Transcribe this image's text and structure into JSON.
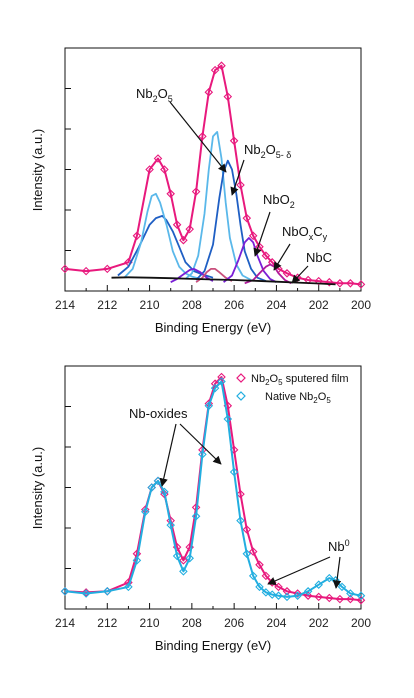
{
  "chart_data": [
    {
      "type": "line",
      "xlabel": "Binding Energy (eV)",
      "ylabel": "Intensity (a.u.)",
      "xlim": [
        214,
        200
      ],
      "ylim": [
        0,
        1.1
      ],
      "x_reversed": true,
      "xticks": [
        "214",
        "212",
        "210",
        "208",
        "206",
        "204",
        "202",
        "200"
      ],
      "annotations": {
        "nb2o5": {
          "main": "Nb",
          "sub": "2",
          "main2": "O",
          "sub2": "5"
        },
        "nb2o5d": {
          "main": "Nb",
          "sub": "2",
          "main2": "O",
          "sub2": "5- δ"
        },
        "nbo2": {
          "main": "NbO",
          "sub": "2"
        },
        "nboxcy": {
          "main": "NbO",
          "sub": "x",
          "main2": "C",
          "sub2": "y"
        },
        "nbc": "NbC"
      },
      "series": [
        {
          "color": "#e8197d",
          "x": [
            214,
            213,
            212,
            211,
            210.6,
            210,
            209.6,
            209.3,
            209,
            208.7,
            208.4,
            208.1,
            207.8,
            207.5,
            207.2,
            206.9,
            206.6,
            206.3,
            206,
            205.7,
            205.4,
            205.1,
            204.8,
            204.5,
            204.2,
            203.9,
            203.5,
            203,
            202.5,
            202,
            201.5,
            201,
            200.5,
            200
          ],
          "y": [
            0.1,
            0.09,
            0.1,
            0.13,
            0.25,
            0.55,
            0.6,
            0.55,
            0.44,
            0.3,
            0.23,
            0.28,
            0.45,
            0.7,
            0.9,
            1.0,
            1.02,
            0.88,
            0.68,
            0.48,
            0.33,
            0.25,
            0.2,
            0.16,
            0.13,
            0.1,
            0.08,
            0.06,
            0.05,
            0.045,
            0.04,
            0.035,
            0.035,
            0.03
          ]
        },
        {
          "color": "#1f5fc4",
          "x": [
            211.5,
            211,
            210.5,
            210,
            209.7,
            209.4,
            209.2,
            208.9,
            208.6,
            208.3,
            207.9,
            207.5,
            207
          ],
          "y": [
            0.07,
            0.11,
            0.2,
            0.3,
            0.33,
            0.34,
            0.32,
            0.27,
            0.2,
            0.13,
            0.09,
            0.075,
            0.06
          ]
        },
        {
          "color": "#5ab8ea",
          "x": [
            211.2,
            210.8,
            210.4,
            210.1,
            209.9,
            209.7,
            209.5,
            209.2,
            208.9,
            208.6,
            208.3,
            208,
            207.6
          ],
          "y": [
            0.06,
            0.1,
            0.22,
            0.36,
            0.43,
            0.44,
            0.4,
            0.3,
            0.18,
            0.11,
            0.08,
            0.065,
            0.055
          ]
        },
        {
          "color": "#5ab8ea",
          "x": [
            208.3,
            208,
            207.7,
            207.4,
            207.2,
            207,
            206.8,
            206.6,
            206.4,
            206.2,
            205.9,
            205.6,
            205.2
          ],
          "y": [
            0.055,
            0.08,
            0.16,
            0.35,
            0.55,
            0.7,
            0.72,
            0.6,
            0.4,
            0.24,
            0.12,
            0.07,
            0.05
          ]
        },
        {
          "color": "#1f5fc4",
          "x": [
            207.8,
            207.4,
            207,
            206.7,
            206.5,
            206.3,
            206.1,
            205.9,
            205.7,
            205.5,
            205.2,
            204.9,
            204.5
          ],
          "y": [
            0.05,
            0.09,
            0.21,
            0.42,
            0.54,
            0.59,
            0.55,
            0.44,
            0.3,
            0.18,
            0.1,
            0.06,
            0.045
          ]
        },
        {
          "color": "#7a1fd6",
          "x": [
            209,
            208.7,
            208.4,
            208.1,
            207.9,
            207.6,
            207.3,
            207
          ],
          "y": [
            0.04,
            0.055,
            0.075,
            0.095,
            0.1,
            0.085,
            0.06,
            0.045
          ]
        },
        {
          "color": "#c94f7c",
          "x": [
            207.8,
            207.5,
            207.3,
            207.1,
            206.9,
            206.7,
            206.4,
            206.1
          ],
          "y": [
            0.04,
            0.06,
            0.085,
            0.1,
            0.1,
            0.085,
            0.06,
            0.045
          ]
        },
        {
          "color": "#7a1fd6",
          "x": [
            206.5,
            206.1,
            205.8,
            205.5,
            205.3,
            205.1,
            204.9,
            204.6,
            204.3,
            204
          ],
          "y": [
            0.04,
            0.07,
            0.14,
            0.22,
            0.24,
            0.22,
            0.16,
            0.09,
            0.055,
            0.04
          ]
        },
        {
          "color": "#b01a9b",
          "x": [
            205.5,
            205.1,
            204.8,
            204.5,
            204.3,
            204.1,
            203.9,
            203.6,
            203.3
          ],
          "y": [
            0.035,
            0.05,
            0.08,
            0.11,
            0.12,
            0.11,
            0.08,
            0.05,
            0.035
          ]
        },
        {
          "color": "#111111",
          "x": [
            211.8,
            211,
            210,
            209,
            208,
            207,
            206,
            205,
            204,
            203,
            202,
            201.2
          ],
          "y": [
            0.06,
            0.062,
            0.06,
            0.058,
            0.055,
            0.052,
            0.05,
            0.046,
            0.042,
            0.038,
            0.034,
            0.03
          ]
        }
      ]
    },
    {
      "type": "line",
      "xlabel": "Binding Energy (eV)",
      "ylabel": "Intensity (a.u.)",
      "xlim": [
        214,
        200
      ],
      "ylim": [
        0,
        1.1
      ],
      "x_reversed": true,
      "xticks": [
        "214",
        "212",
        "210",
        "208",
        "206",
        "204",
        "202",
        "200"
      ],
      "legend_position": "top-right",
      "annotations": {
        "nb_oxides": "Nb-oxides",
        "nb0": {
          "main": "Nb",
          "sup": "0"
        }
      },
      "series": [
        {
          "name": "Nb₂O₅ sputered film",
          "legend_main": "Nb",
          "legend_sub": "2",
          "legend_main2": "O",
          "legend_sub2": "5",
          "legend_rest": " sputered film",
          "color": "#e8197d",
          "x": [
            214,
            213,
            212,
            211,
            210.6,
            210.2,
            209.9,
            209.6,
            209.3,
            209,
            208.7,
            208.4,
            208.1,
            207.8,
            207.5,
            207.2,
            206.9,
            206.6,
            206.3,
            206,
            205.7,
            205.4,
            205.1,
            204.8,
            204.5,
            204.2,
            203.9,
            203.5,
            203,
            202.5,
            202,
            201.5,
            201,
            200.5,
            200
          ],
          "y": [
            0.08,
            0.075,
            0.08,
            0.12,
            0.25,
            0.45,
            0.55,
            0.58,
            0.52,
            0.4,
            0.28,
            0.22,
            0.28,
            0.46,
            0.72,
            0.93,
            1.02,
            1.05,
            0.92,
            0.72,
            0.52,
            0.36,
            0.26,
            0.2,
            0.15,
            0.12,
            0.1,
            0.08,
            0.07,
            0.06,
            0.055,
            0.05,
            0.045,
            0.045,
            0.04
          ]
        },
        {
          "name": "Native Nb₂O₅",
          "legend_main": "Native Nb",
          "legend_sub": "2",
          "legend_main2": "O",
          "legend_sub2": "5",
          "legend_rest": "",
          "color": "#22aee0",
          "x": [
            214,
            213,
            212,
            211,
            210.6,
            210.2,
            209.9,
            209.6,
            209.3,
            209,
            208.7,
            208.4,
            208.1,
            207.8,
            207.5,
            207.2,
            206.9,
            206.6,
            206.3,
            206,
            205.7,
            205.4,
            205.1,
            204.8,
            204.5,
            204.2,
            203.9,
            203.5,
            203,
            202.5,
            202,
            201.5,
            201.2,
            200.9,
            200.5,
            200
          ],
          "y": [
            0.08,
            0.07,
            0.08,
            0.1,
            0.22,
            0.44,
            0.55,
            0.58,
            0.53,
            0.38,
            0.24,
            0.17,
            0.23,
            0.42,
            0.7,
            0.92,
            1.0,
            1.03,
            0.86,
            0.62,
            0.4,
            0.25,
            0.15,
            0.1,
            0.075,
            0.065,
            0.06,
            0.055,
            0.06,
            0.08,
            0.11,
            0.14,
            0.13,
            0.1,
            0.07,
            0.06
          ]
        }
      ]
    }
  ]
}
